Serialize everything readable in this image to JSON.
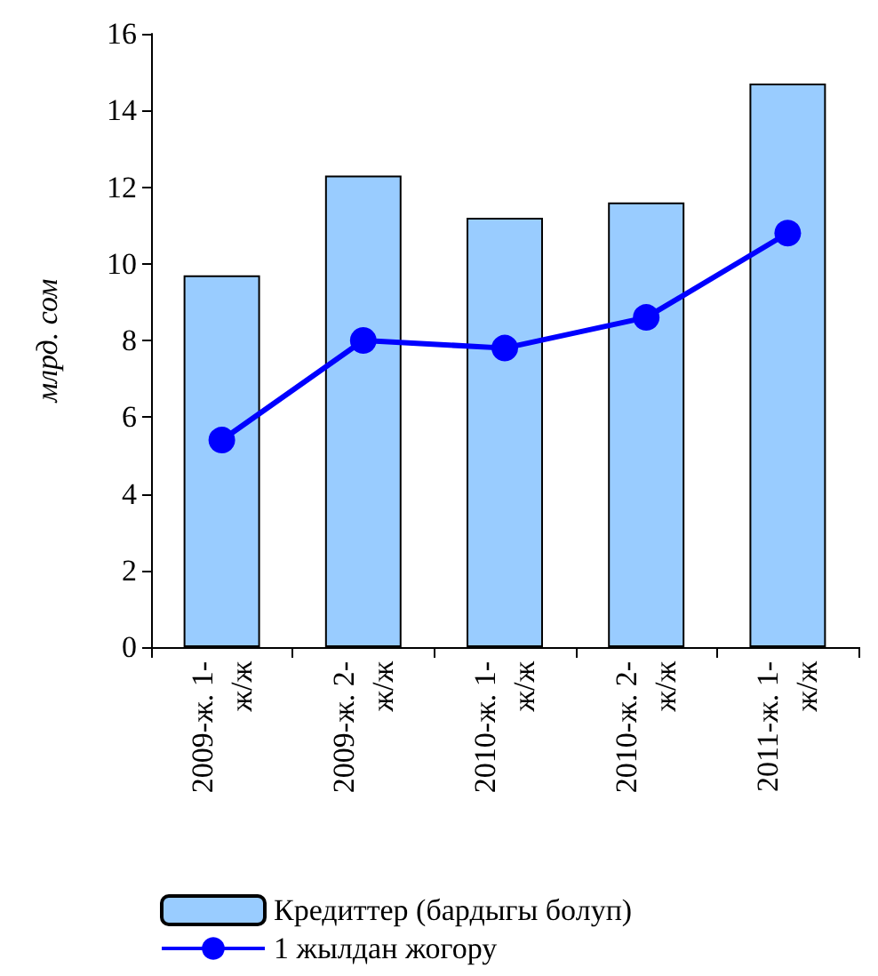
{
  "chart_data": {
    "type": "bar",
    "ylabel": "млрд. сом",
    "categories": [
      "2009-ж. 1-\nж/ж",
      "2009-ж. 2-\nж/ж",
      "2010-ж. 1-\nж/ж",
      "2010-ж. 2-\nж/ж",
      "2011-ж. 1-\nж/ж"
    ],
    "series": [
      {
        "name": "Кредиттер (бардыгы болуп)",
        "color": "#99ccff",
        "values": [
          9.7,
          12.3,
          11.2,
          11.6,
          14.7
        ]
      },
      {
        "name": "1 жылдан жогору",
        "type": "line",
        "color": "#0000ff",
        "values": [
          5.4,
          8.0,
          7.8,
          8.6,
          10.8
        ]
      }
    ],
    "ylim": [
      0,
      16
    ],
    "yticks": [
      0,
      2,
      4,
      6,
      8,
      10,
      12,
      14,
      16
    ],
    "grid": false,
    "legend": "bottom",
    "marker": "circle",
    "line_style": "solid"
  }
}
